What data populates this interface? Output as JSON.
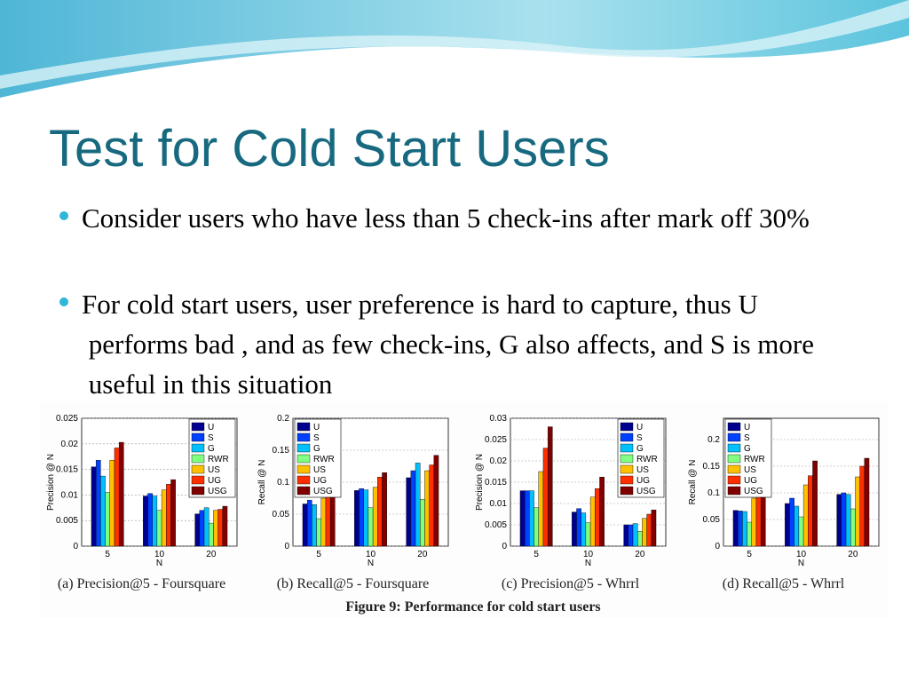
{
  "title": "Test for Cold Start Users",
  "bullets": [
    "Consider users who have less than 5 check-ins after mark off 30%",
    "For cold start users, user preference is hard to capture, thus U performs bad , and as few check-ins, G also affects, and S is more useful in this situation"
  ],
  "figure_caption": "Figure 9: Performance for cold start users",
  "chart_data": [
    {
      "type": "bar",
      "caption": "(a) Precision@5 - Foursquare",
      "ylabel": "Precision @ N",
      "xlabel": "N",
      "legend": "upper right",
      "categories": [
        "5",
        "10",
        "20"
      ],
      "ylim": [
        0,
        0.025
      ],
      "yticks": [
        0,
        0.005,
        0.01,
        0.015,
        0.02,
        0.025
      ],
      "series": [
        {
          "name": "U",
          "color": "#00008f",
          "values": [
            0.0155,
            0.0098,
            0.0063
          ]
        },
        {
          "name": "S",
          "color": "#0040ff",
          "values": [
            0.0168,
            0.0103,
            0.007
          ]
        },
        {
          "name": "G",
          "color": "#00c0ff",
          "values": [
            0.0137,
            0.0098,
            0.0075
          ]
        },
        {
          "name": "RWR",
          "color": "#80ff80",
          "values": [
            0.0105,
            0.007,
            0.0045
          ]
        },
        {
          "name": "US",
          "color": "#ffc000",
          "values": [
            0.0168,
            0.011,
            0.007
          ]
        },
        {
          "name": "UG",
          "color": "#ff3000",
          "values": [
            0.0192,
            0.0121,
            0.0072
          ]
        },
        {
          "name": "USG",
          "color": "#800000",
          "values": [
            0.0203,
            0.013,
            0.0078
          ]
        }
      ]
    },
    {
      "type": "bar",
      "caption": "(b) Recall@5 - Foursquare",
      "ylabel": "Recall @ N",
      "xlabel": "N",
      "legend": "upper left",
      "categories": [
        "5",
        "10",
        "20"
      ],
      "ylim": [
        0,
        0.2
      ],
      "yticks": [
        0,
        0.05,
        0.1,
        0.15,
        0.2
      ],
      "series": [
        {
          "name": "U",
          "color": "#00008f",
          "values": [
            0.066,
            0.087,
            0.107
          ]
        },
        {
          "name": "S",
          "color": "#0040ff",
          "values": [
            0.072,
            0.09,
            0.118
          ]
        },
        {
          "name": "G",
          "color": "#00c0ff",
          "values": [
            0.065,
            0.088,
            0.13
          ]
        },
        {
          "name": "RWR",
          "color": "#80ff80",
          "values": [
            0.043,
            0.06,
            0.073
          ]
        },
        {
          "name": "US",
          "color": "#ffc000",
          "values": [
            0.075,
            0.092,
            0.118
          ]
        },
        {
          "name": "UG",
          "color": "#ff3000",
          "values": [
            0.085,
            0.108,
            0.127
          ]
        },
        {
          "name": "USG",
          "color": "#800000",
          "values": [
            0.088,
            0.115,
            0.142
          ]
        }
      ]
    },
    {
      "type": "bar",
      "caption": "(c) Precision@5 - Whrrl",
      "ylabel": "Precision @ N",
      "xlabel": "N",
      "legend": "upper right",
      "categories": [
        "5",
        "10",
        "20"
      ],
      "ylim": [
        0,
        0.03
      ],
      "yticks": [
        0,
        0.005,
        0.01,
        0.015,
        0.02,
        0.025,
        0.03
      ],
      "series": [
        {
          "name": "U",
          "color": "#00008f",
          "values": [
            0.013,
            0.008,
            0.005
          ]
        },
        {
          "name": "S",
          "color": "#0040ff",
          "values": [
            0.013,
            0.0088,
            0.005
          ]
        },
        {
          "name": "G",
          "color": "#00c0ff",
          "values": [
            0.013,
            0.0078,
            0.0053
          ]
        },
        {
          "name": "RWR",
          "color": "#80ff80",
          "values": [
            0.009,
            0.0055,
            0.0035
          ]
        },
        {
          "name": "US",
          "color": "#ffc000",
          "values": [
            0.0175,
            0.0115,
            0.0065
          ]
        },
        {
          "name": "UG",
          "color": "#ff3000",
          "values": [
            0.023,
            0.0135,
            0.0075
          ]
        },
        {
          "name": "USG",
          "color": "#800000",
          "values": [
            0.028,
            0.0162,
            0.0085
          ]
        }
      ]
    },
    {
      "type": "bar",
      "caption": "(d) Recall@5 - Whrrl",
      "ylabel": "Recall @ N",
      "xlabel": "N",
      "legend": "upper left",
      "categories": [
        "5",
        "10",
        "20"
      ],
      "ylim": [
        0,
        0.24
      ],
      "yticks": [
        0,
        0.05,
        0.1,
        0.15,
        0.2
      ],
      "series": [
        {
          "name": "U",
          "color": "#00008f",
          "values": [
            0.067,
            0.08,
            0.097
          ]
        },
        {
          "name": "S",
          "color": "#0040ff",
          "values": [
            0.066,
            0.09,
            0.1
          ]
        },
        {
          "name": "G",
          "color": "#00c0ff",
          "values": [
            0.065,
            0.075,
            0.097
          ]
        },
        {
          "name": "RWR",
          "color": "#80ff80",
          "values": [
            0.045,
            0.055,
            0.07
          ]
        },
        {
          "name": "US",
          "color": "#ffc000",
          "values": [
            0.09,
            0.115,
            0.13
          ]
        },
        {
          "name": "UG",
          "color": "#ff3000",
          "values": [
            0.116,
            0.132,
            0.15
          ]
        },
        {
          "name": "USG",
          "color": "#800000",
          "values": [
            0.14,
            0.16,
            0.165
          ]
        }
      ]
    }
  ]
}
